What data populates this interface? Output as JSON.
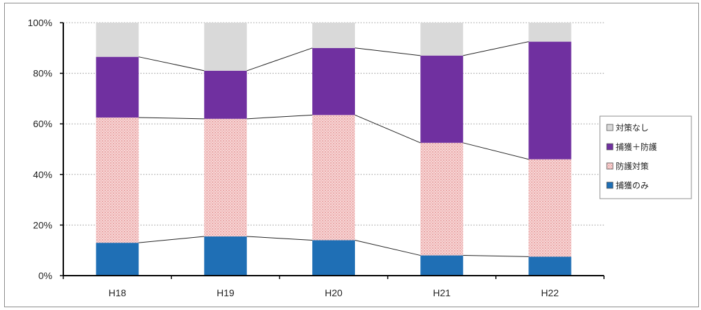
{
  "chart_data": {
    "type": "bar",
    "stacked": true,
    "categories": [
      "H18",
      "H19",
      "H20",
      "H21",
      "H22"
    ],
    "series": [
      {
        "name": "捕獲のみ",
        "color": "#1f6fb5",
        "pattern": "solid",
        "values": [
          13,
          15.5,
          14,
          8,
          7.5
        ]
      },
      {
        "name": "防護対策",
        "color": "#f3c4c4",
        "pattern": "dotted-pink",
        "values": [
          49.5,
          46.5,
          49.5,
          44.5,
          38.5
        ]
      },
      {
        "name": "捕獲＋防護",
        "color": "#7030a0",
        "pattern": "solid",
        "values": [
          24,
          19,
          26.5,
          34.5,
          46.5
        ]
      },
      {
        "name": "対策なし",
        "color": "#d9d9d9",
        "pattern": "solid",
        "values": [
          13.5,
          19,
          10,
          13,
          7.5
        ]
      }
    ],
    "ylim": [
      0,
      100
    ],
    "yticks": [
      "0%",
      "20%",
      "40%",
      "60%",
      "80%",
      "100%"
    ],
    "legend_position": "right",
    "grid": true,
    "series_lines": true
  }
}
